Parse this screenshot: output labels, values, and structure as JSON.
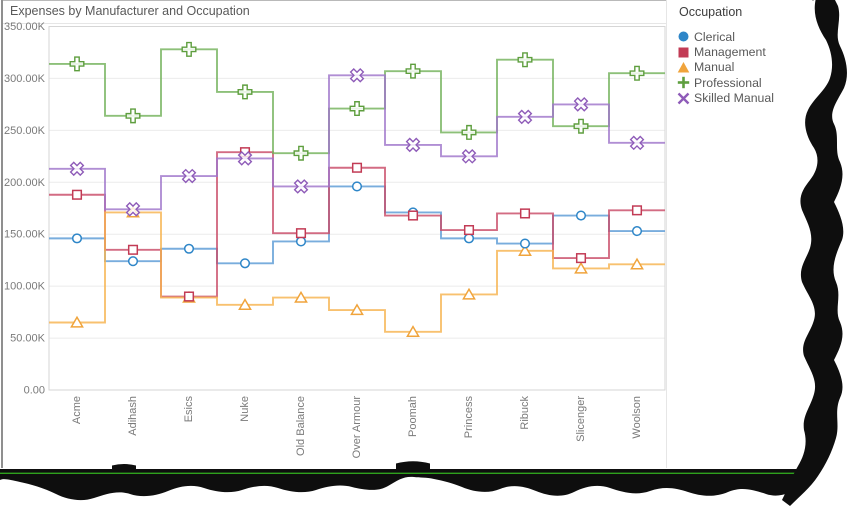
{
  "window": {
    "title": "Expenses by Manufacturer and Occupation"
  },
  "legend": {
    "title": "Occupation",
    "items": [
      {
        "label": "Clerical",
        "marker": "circle-icon",
        "color": "#2E86C8"
      },
      {
        "label": "Management",
        "marker": "square-icon",
        "color": "#C23B55"
      },
      {
        "label": "Manual",
        "marker": "triangle-icon",
        "color": "#F0A43C"
      },
      {
        "label": "Professional",
        "marker": "plus-icon",
        "color": "#5E9E3E"
      },
      {
        "label": "Skilled Manual",
        "marker": "x-icon",
        "color": "#8E5BB8"
      }
    ]
  },
  "decoration": {
    "tear_color": "#0e0e0e",
    "accent_line_color": "#2FA11D"
  },
  "chart_data": {
    "type": "line",
    "line_style": "step",
    "title": "Expenses by Manufacturer and Occupation",
    "categories": [
      "Acme",
      "Adihash",
      "Esics",
      "Nuke",
      "Old Balance",
      "Over Armour",
      "Poomah",
      "Princess",
      "Ribuck",
      "Slicenger",
      "Woolson"
    ],
    "series": [
      {
        "name": "Clerical",
        "marker": "circle",
        "color": "#2E86C8",
        "line_color": "#5B9BD5",
        "values": [
          146000,
          124000,
          136000,
          122000,
          143000,
          196000,
          171000,
          146000,
          141000,
          168000,
          153000
        ]
      },
      {
        "name": "Management",
        "marker": "square",
        "color": "#C23B55",
        "line_color": "#C94C68",
        "values": [
          188000,
          135000,
          90000,
          229000,
          151000,
          214000,
          168000,
          154000,
          170000,
          127000,
          173000
        ]
      },
      {
        "name": "Manual",
        "marker": "triangle",
        "color": "#F0A43C",
        "line_color": "#F6B34F",
        "values": [
          65000,
          171000,
          89000,
          82000,
          89000,
          77000,
          56000,
          92000,
          134000,
          117000,
          121000
        ]
      },
      {
        "name": "Professional",
        "marker": "plus",
        "color": "#5E9E3E",
        "line_color": "#74B25C",
        "values": [
          314000,
          264000,
          328000,
          287000,
          228000,
          271000,
          307000,
          248000,
          318000,
          254000,
          305000
        ]
      },
      {
        "name": "Skilled Manual",
        "marker": "x",
        "color": "#8E5BB8",
        "line_color": "#9F75CA",
        "values": [
          213000,
          174000,
          206000,
          223000,
          196000,
          303000,
          236000,
          225000,
          263000,
          275000,
          238000
        ]
      }
    ],
    "ylim": [
      0,
      350000
    ],
    "yticks": [
      {
        "value": 0,
        "label": "0.00"
      },
      {
        "value": 50000,
        "label": "50.00K"
      },
      {
        "value": 100000,
        "label": "100.00K"
      },
      {
        "value": 150000,
        "label": "150.00K"
      },
      {
        "value": 200000,
        "label": "200.00K"
      },
      {
        "value": 250000,
        "label": "250.00K"
      },
      {
        "value": 300000,
        "label": "300.00K"
      },
      {
        "value": 350000,
        "label": "350.00K"
      }
    ],
    "grid": true,
    "legend_position": "right"
  }
}
